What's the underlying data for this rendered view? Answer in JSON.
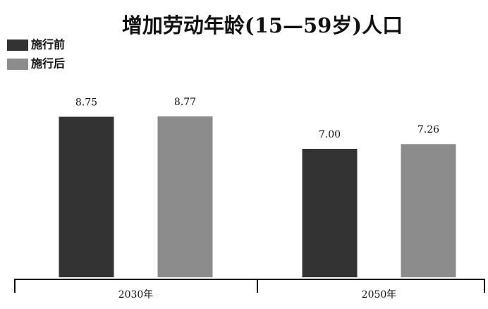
{
  "chart_data": {
    "type": "bar",
    "title": "增加劳动年龄(15—59岁)人口",
    "categories": [
      "2030年",
      "2050年"
    ],
    "series": [
      {
        "name": "施行前",
        "color": "#333333",
        "values": [
          8.75,
          7.0
        ],
        "value_labels": [
          "8.75",
          "7.00"
        ]
      },
      {
        "name": "施行后",
        "color": "#8c8c8c",
        "values": [
          8.77,
          7.26
        ],
        "value_labels": [
          "8.77",
          "7.26"
        ]
      }
    ],
    "ylim": [
      0,
      10
    ],
    "legend": "top-left"
  }
}
